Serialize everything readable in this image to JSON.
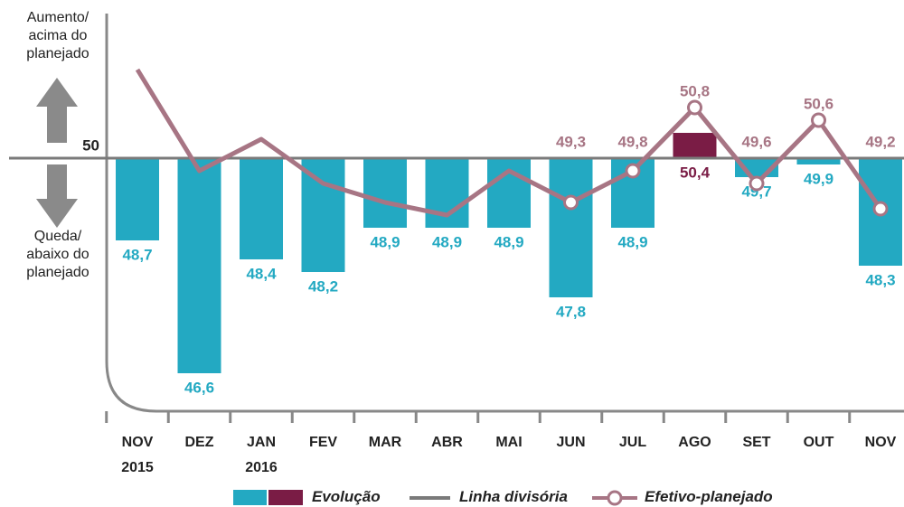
{
  "chart_data": {
    "type": "bar",
    "annotations": [
      "Aumento/ acima do planejado",
      "Queda/ abaixo do planejado"
    ],
    "categories": [
      "NOV 2015",
      "DEZ",
      "JAN 2016",
      "FEV",
      "MAR",
      "ABR",
      "MAI",
      "JUN",
      "JUL",
      "AGO",
      "SET",
      "OUT",
      "NOV"
    ],
    "ylim": [
      45.9,
      52.5
    ],
    "yticks": [
      50
    ],
    "reference_line": {
      "name": "Linha divisória",
      "value": 50,
      "color": "#7a7a7a"
    },
    "series": [
      {
        "name": "Evolução",
        "type": "bar",
        "colors": [
          "#23a9c2",
          "#23a9c2",
          "#23a9c2",
          "#23a9c2",
          "#23a9c2",
          "#23a9c2",
          "#23a9c2",
          "#23a9c2",
          "#23a9c2",
          "#7a1c45",
          "#23a9c2",
          "#23a9c2",
          "#23a9c2"
        ],
        "values": [
          48.7,
          46.6,
          48.4,
          48.2,
          48.9,
          48.9,
          48.9,
          47.8,
          48.9,
          50.4,
          49.7,
          49.9,
          48.3
        ],
        "value_labels": [
          "48,7",
          "46,6",
          "48,4",
          "48,2",
          "48,9",
          "48,9",
          "48,9",
          "47,8",
          "48,9",
          "50,4",
          "49,7",
          "49,9",
          "48,3"
        ]
      },
      {
        "name": "Efetivo-planejado",
        "type": "line",
        "color": "#a77584",
        "values": [
          51.4,
          49.8,
          50.3,
          49.6,
          49.3,
          49.1,
          49.8,
          49.3,
          49.8,
          50.8,
          49.6,
          50.6,
          49.2
        ],
        "value_labels": [
          null,
          null,
          null,
          null,
          null,
          null,
          null,
          "49,3",
          "49,8",
          "50,8",
          "49,6",
          "50,6",
          "49,2"
        ]
      }
    ]
  }
}
